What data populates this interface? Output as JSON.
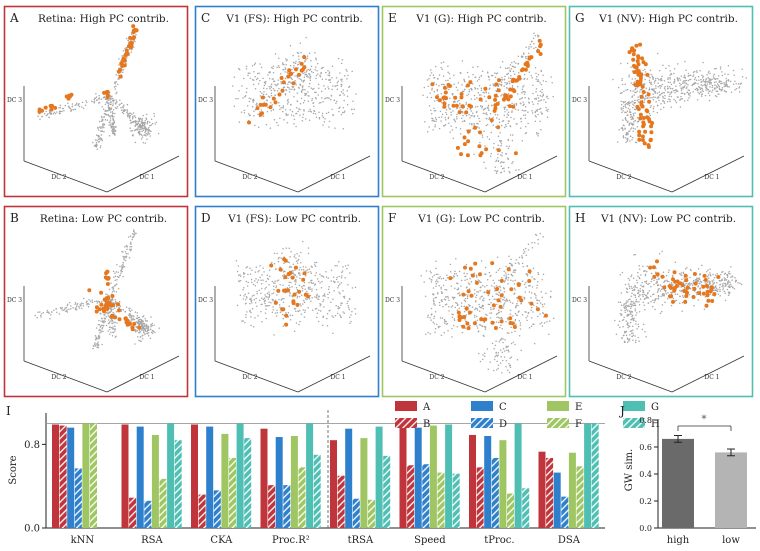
{
  "colors": {
    "scatter_gray": "#a7a7a7",
    "highlight": "#e5771f",
    "frame": {
      "Retina": "#c0343b",
      "V1 (FS)": "#2e7fcc",
      "V1 (G)": "#9fc662",
      "V1 (NV)": "#4fbfb3"
    }
  },
  "panels": [
    {
      "letter": "A",
      "title": "Retina: High PC contrib.",
      "group": "Retina",
      "axes": [
        "DC 1",
        "DC 2",
        "DC 3"
      ]
    },
    {
      "letter": "C",
      "title": "V1 (FS): High PC contrib.",
      "group": "V1 (FS)",
      "axes": [
        "DC 1",
        "DC 2",
        "DC 3"
      ]
    },
    {
      "letter": "E",
      "title": "V1 (G): High PC contrib.",
      "group": "V1 (G)",
      "axes": [
        "DC 1",
        "DC 2",
        "DC 3"
      ]
    },
    {
      "letter": "G",
      "title": "V1 (NV): High PC contrib.",
      "group": "V1 (NV)",
      "axes": [
        "DC 1",
        "DC 2",
        "DC 3"
      ]
    },
    {
      "letter": "B",
      "title": "Retina: Low PC contrib.",
      "group": "Retina",
      "axes": [
        "DC 1",
        "DC 2",
        "DC 3"
      ]
    },
    {
      "letter": "D",
      "title": "V1 (FS): Low PC contrib.",
      "group": "V1 (FS)",
      "axes": [
        "DC 1",
        "DC 2",
        "DC 3"
      ]
    },
    {
      "letter": "F",
      "title": "V1 (G): Low PC contrib.",
      "group": "V1 (G)",
      "axes": [
        "DC 1",
        "DC 2",
        "DC 3"
      ]
    },
    {
      "letter": "H",
      "title": "V1 (NV): Low PC contrib.",
      "group": "V1 (NV)",
      "axes": [
        "DC 1",
        "DC 2",
        "DC 3"
      ]
    }
  ],
  "chart_data": [
    {
      "panel": "I",
      "type": "bar",
      "ylabel": "Score",
      "ylim": [
        0,
        1.1
      ],
      "yticks": [
        0.0,
        0.8
      ],
      "reference_line": 1.0,
      "categories": [
        "kNN",
        "RSA",
        "CKA",
        "Proc.R²",
        "tRSA",
        "Speed",
        "tProc.",
        "DSA"
      ],
      "legend_placement": "top-right",
      "series": [
        {
          "name": "A",
          "color": "#c0343b",
          "hatch": false,
          "values": [
            0.99,
            0.99,
            0.99,
            0.95,
            0.84,
            0.96,
            0.89,
            0.73
          ]
        },
        {
          "name": "B",
          "color": "#c0343b",
          "hatch": true,
          "values": [
            0.98,
            0.29,
            0.32,
            0.41,
            0.5,
            0.6,
            0.58,
            0.67
          ]
        },
        {
          "name": "C",
          "color": "#2e7fcc",
          "hatch": false,
          "values": [
            0.96,
            0.97,
            0.97,
            0.87,
            0.95,
            0.96,
            0.88,
            0.53
          ]
        },
        {
          "name": "D",
          "color": "#2e7fcc",
          "hatch": true,
          "values": [
            0.57,
            0.26,
            0.36,
            0.41,
            0.28,
            0.61,
            0.67,
            0.3
          ]
        },
        {
          "name": "E",
          "color": "#9fc662",
          "hatch": false,
          "values": [
            1.0,
            0.89,
            0.9,
            0.88,
            0.86,
            0.98,
            0.84,
            0.72
          ]
        },
        {
          "name": "F",
          "color": "#9fc662",
          "hatch": true,
          "values": [
            1.0,
            0.47,
            0.67,
            0.58,
            0.27,
            0.53,
            0.33,
            0.59
          ]
        },
        {
          "name": "G",
          "color": "#4fbfb3",
          "hatch": false,
          "values": [
            null,
            1.0,
            1.0,
            1.0,
            0.97,
            0.99,
            1.0,
            1.0
          ]
        },
        {
          "name": "H",
          "color": "#4fbfb3",
          "hatch": true,
          "values": [
            null,
            0.84,
            0.86,
            0.7,
            0.69,
            0.52,
            0.38,
            1.0
          ]
        }
      ]
    },
    {
      "panel": "J",
      "type": "bar",
      "ylabel": "GW sim.",
      "ylim": [
        0,
        0.8
      ],
      "yticks": [
        0.0,
        0.2,
        0.4,
        0.6,
        0.8
      ],
      "categories": [
        "high",
        "low"
      ],
      "values": [
        0.66,
        0.56
      ],
      "errors": [
        0.025,
        0.025
      ],
      "colors": [
        "#6a6a6a",
        "#b4b4b4"
      ],
      "significance": "*"
    }
  ]
}
